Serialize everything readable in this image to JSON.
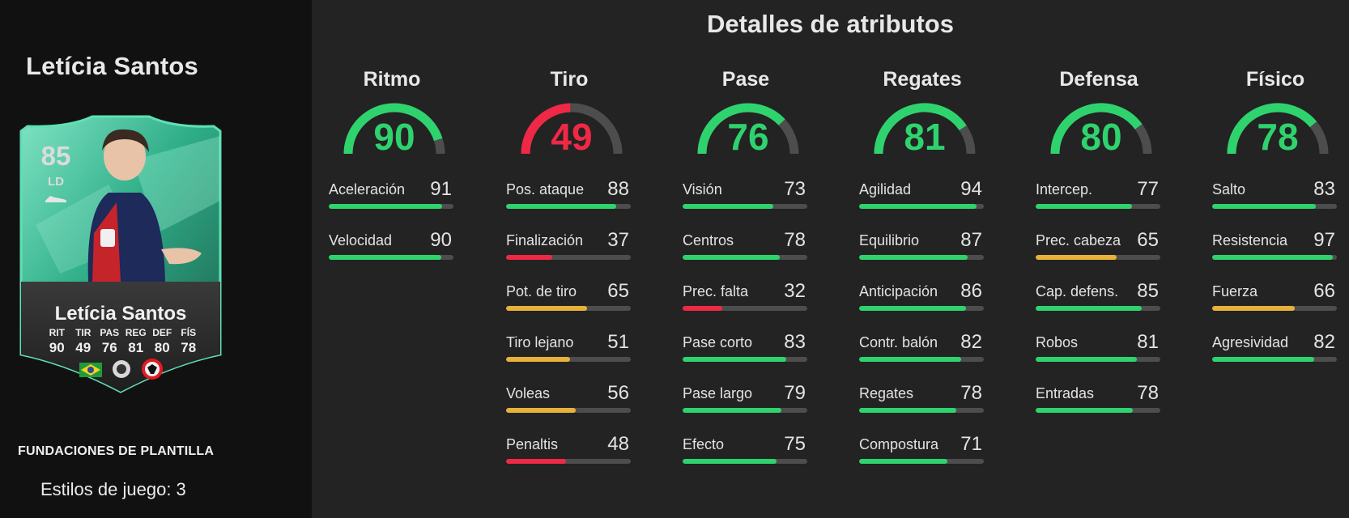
{
  "player": {
    "name": "Letícia Santos",
    "rating": "85",
    "position": "LD",
    "card_stats": [
      {
        "label": "RIT",
        "value": "90"
      },
      {
        "label": "TIR",
        "value": "49"
      },
      {
        "label": "PAS",
        "value": "76"
      },
      {
        "label": "REG",
        "value": "81"
      },
      {
        "label": "DEF",
        "value": "80"
      },
      {
        "label": "FÍS",
        "value": "78"
      }
    ],
    "card_color": "#2bbf8f"
  },
  "footer": {
    "promo": "FUNDACIONES DE PLANTILLA",
    "playstyles": "Estilos de juego: 3"
  },
  "title": "Detalles de atributos",
  "colors": {
    "green": "#2fd36e",
    "red": "#ef2945",
    "yellow": "#e8b23a",
    "track": "#4d4d4d"
  },
  "categories": [
    {
      "name": "Ritmo",
      "value": 90,
      "attrs": [
        {
          "name": "Aceleración",
          "value": 91
        },
        {
          "name": "Velocidad",
          "value": 90
        }
      ]
    },
    {
      "name": "Tiro",
      "value": 49,
      "attrs": [
        {
          "name": "Pos. ataque",
          "value": 88
        },
        {
          "name": "Finalización",
          "value": 37
        },
        {
          "name": "Pot. de tiro",
          "value": 65
        },
        {
          "name": "Tiro lejano",
          "value": 51
        },
        {
          "name": "Voleas",
          "value": 56
        },
        {
          "name": "Penaltis",
          "value": 48
        }
      ]
    },
    {
      "name": "Pase",
      "value": 76,
      "attrs": [
        {
          "name": "Visión",
          "value": 73
        },
        {
          "name": "Centros",
          "value": 78
        },
        {
          "name": "Prec. falta",
          "value": 32
        },
        {
          "name": "Pase corto",
          "value": 83
        },
        {
          "name": "Pase largo",
          "value": 79
        },
        {
          "name": "Efecto",
          "value": 75
        }
      ]
    },
    {
      "name": "Regates",
      "value": 81,
      "attrs": [
        {
          "name": "Agilidad",
          "value": 94
        },
        {
          "name": "Equilibrio",
          "value": 87
        },
        {
          "name": "Anticipación",
          "value": 86
        },
        {
          "name": "Contr. balón",
          "value": 82
        },
        {
          "name": "Regates",
          "value": 78
        },
        {
          "name": "Compostura",
          "value": 71
        }
      ]
    },
    {
      "name": "Defensa",
      "value": 80,
      "attrs": [
        {
          "name": "Intercep.",
          "value": 77
        },
        {
          "name": "Prec. cabeza",
          "value": 65
        },
        {
          "name": "Cap. defens.",
          "value": 85
        },
        {
          "name": "Robos",
          "value": 81
        },
        {
          "name": "Entradas",
          "value": 78
        }
      ]
    },
    {
      "name": "Físico",
      "value": 78,
      "attrs": [
        {
          "name": "Salto",
          "value": 83
        },
        {
          "name": "Resistencia",
          "value": 97
        },
        {
          "name": "Fuerza",
          "value": 66
        },
        {
          "name": "Agresividad",
          "value": 82
        }
      ]
    }
  ]
}
